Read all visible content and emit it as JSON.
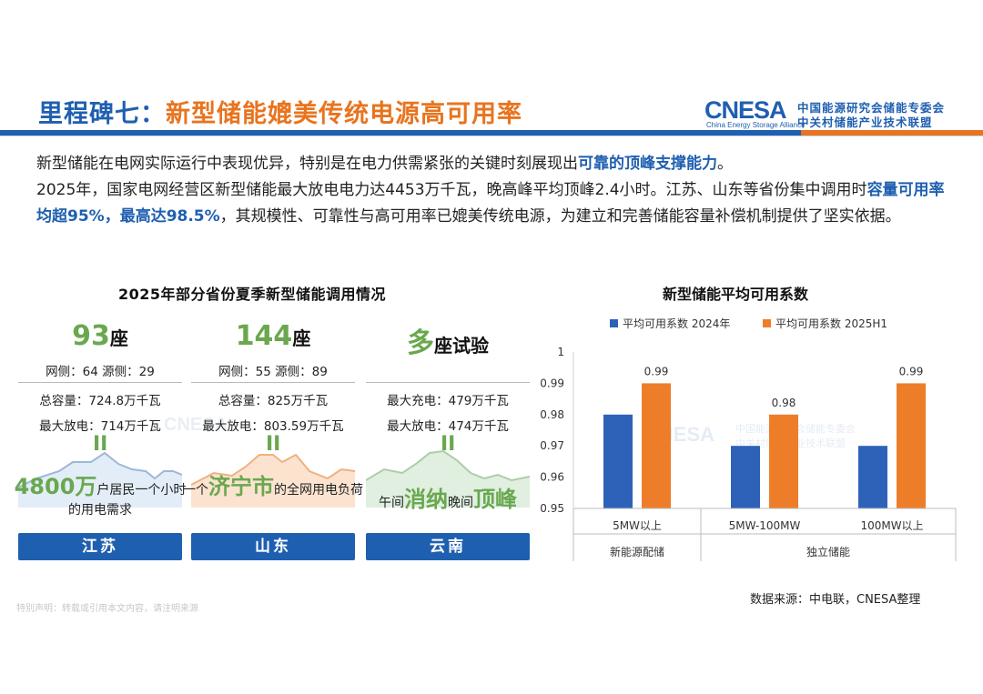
{
  "title": {
    "part1": "里程碑七：",
    "part2": "新型储能媲美传统电源高可用率"
  },
  "logo": {
    "main": "CNESA",
    "sub": "China Energy Storage Alliance",
    "cn1": "中国能源研究会储能专委会",
    "cn2": "中关村储能产业技术联盟"
  },
  "paragraph": {
    "s1": "新型储能在电网实际运行中表现优异，特别是在电力供需紧张的关键时刻展现出",
    "s1_hl": "可靠的顶峰支撑能力",
    "s1_end": "。",
    "s2": "2025年，国家电网经营区新型储能最大放电电力达4453万千瓦，晚高峰平均顶峰2.4小时。江苏、山东等省份集中调用时",
    "s2_hl": "容量可用率均超95%，最高达98.5%",
    "s2_end": "，其规模性、可靠性与高可用率已媲美传统电源，为建立和完善储能容量补偿机制提供了坚实依据。"
  },
  "left_panel": {
    "title": "2025年部分省份夏季新型储能调用情况",
    "cards": [
      {
        "big": "93",
        "unit": "座",
        "row1": "网侧：64   源侧：29",
        "row2": "总容量：724.8万千瓦",
        "row3": "最大放电：714万千瓦",
        "eq": "II",
        "cap_a": "",
        "cap_em": "4800万",
        "cap_b": "户居民一个小时的用电需求",
        "name": "江苏"
      },
      {
        "big": "144",
        "unit": "座",
        "row1": "网侧：55   源侧：89",
        "row2": "总容量：825万千瓦",
        "row3": "最大放电：803.59万千瓦",
        "eq": "II",
        "cap_a": "一个",
        "cap_em": "济宁市",
        "cap_b": "的全网用电负荷",
        "name": "山东"
      },
      {
        "big": "多",
        "unit": "座试验",
        "row1": "",
        "row2": "最大充电：479万千瓦",
        "row3": "最大放电：474万千瓦",
        "eq": "II",
        "cap_a": "午间",
        "cap_em": "消纳",
        "cap_b": "晚间",
        "cap_em2": "顶峰",
        "name": "云南"
      }
    ]
  },
  "right_panel": {
    "title": "新型储能平均可用系数"
  },
  "chart_data": {
    "type": "bar",
    "categories": [
      "5MW以上",
      "5MW-100MW",
      "100MW以上"
    ],
    "groups": [
      {
        "label": "新能源配储",
        "categories": [
          "5MW以上"
        ]
      },
      {
        "label": "独立储能",
        "categories": [
          "5MW-100MW",
          "100MW以上"
        ]
      }
    ],
    "series": [
      {
        "name": "平均可用系数 2024年",
        "color": "#2e62b8",
        "values": [
          0.98,
          0.97,
          0.97
        ]
      },
      {
        "name": "平均可用系数 2025H1",
        "color": "#ee7d2a",
        "values": [
          0.99,
          0.98,
          0.99
        ]
      }
    ],
    "data_labels": [
      "0.99",
      "0.98",
      "0.99"
    ],
    "yticks": [
      "1",
      "0.99",
      "0.98",
      "0.97",
      "0.96",
      "0.95"
    ],
    "ylim": [
      0.95,
      1
    ],
    "legend": "top",
    "grid": false
  },
  "footnote": "数据来源：中电联，CNESA整理",
  "disclaimer": "特别声明：转载或引用本文内容，请注明来源",
  "watermark": {
    "main": "CNESA",
    "cn1": "中国能源研究会储能专委会",
    "cn2": "中关村储能产业技术联盟"
  }
}
